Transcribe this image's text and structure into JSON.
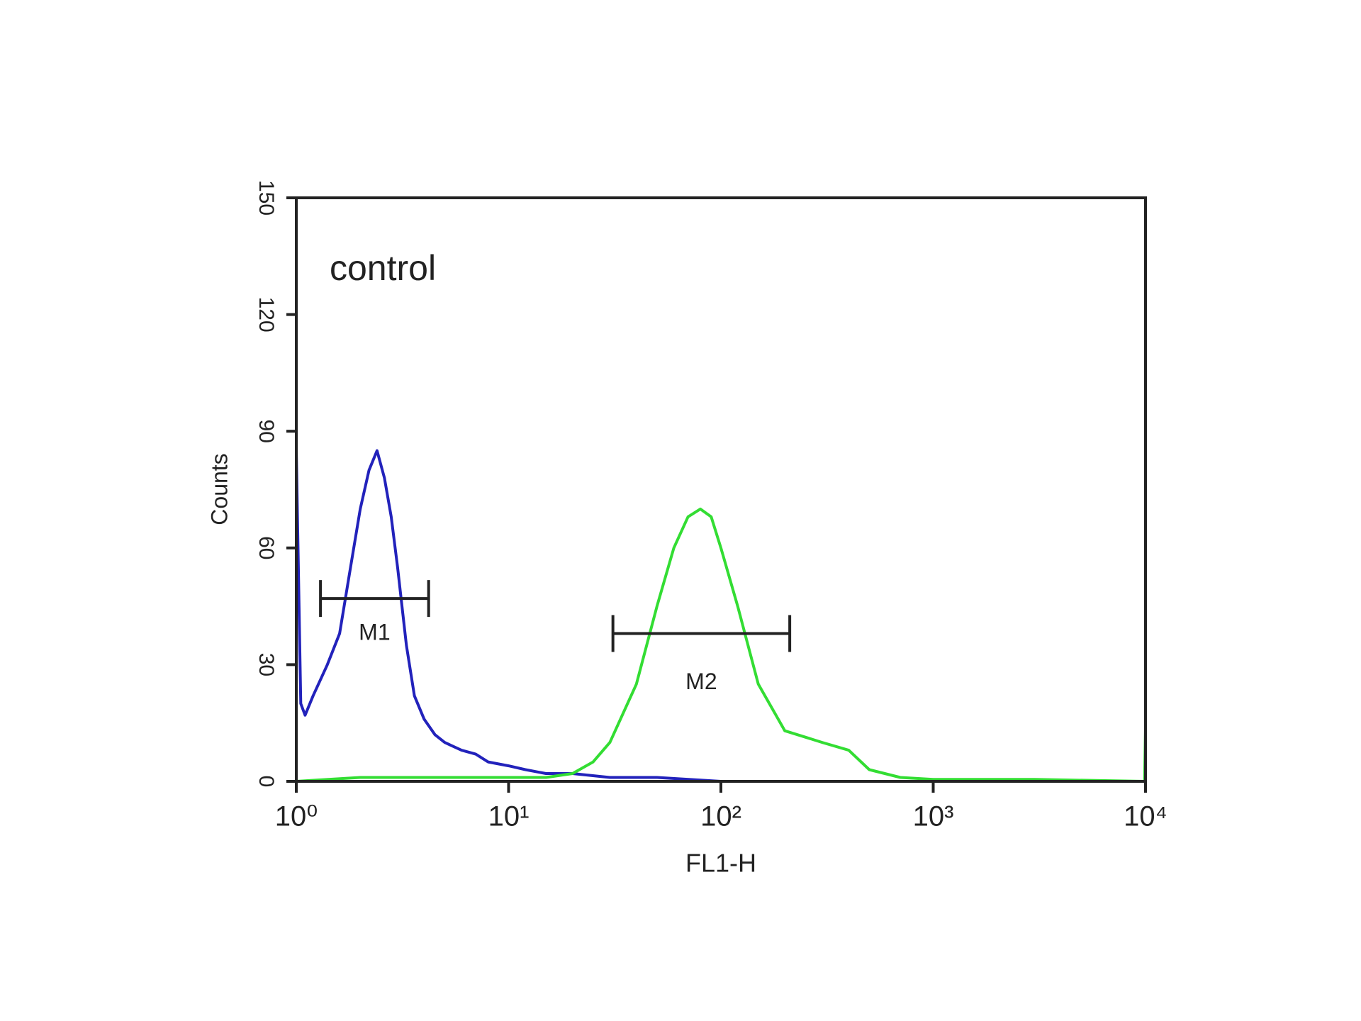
{
  "chart_data": {
    "type": "line",
    "annotation": "control",
    "xlabel": "FL1-H",
    "ylabel": "Counts",
    "xscale": "log",
    "xlim": [
      1,
      10000
    ],
    "ylim": [
      0,
      150
    ],
    "xticks": [
      {
        "value": 1,
        "label": "10⁰"
      },
      {
        "value": 10,
        "label": "10¹"
      },
      {
        "value": 100,
        "label": "10²"
      },
      {
        "value": 1000,
        "label": "10³"
      },
      {
        "value": 10000,
        "label": "10⁴"
      }
    ],
    "yticks": [
      0,
      30,
      60,
      90,
      120,
      150
    ],
    "series": [
      {
        "color": "#2222bb",
        "x": [
          1,
          1.05,
          1.1,
          1.2,
          1.4,
          1.6,
          1.8,
          2.0,
          2.2,
          2.4,
          2.6,
          2.8,
          3.0,
          3.3,
          3.6,
          4.0,
          4.5,
          5,
          6,
          7,
          8,
          10,
          12,
          15,
          20,
          30,
          50,
          100,
          200,
          1000,
          10000
        ],
        "values": [
          85,
          20,
          17,
          22,
          30,
          38,
          55,
          70,
          80,
          85,
          78,
          68,
          55,
          35,
          22,
          16,
          12,
          10,
          8,
          7,
          5,
          4,
          3,
          2,
          2,
          1,
          1,
          0,
          0,
          0,
          0
        ]
      },
      {
        "color": "#33dd33",
        "x": [
          1,
          2,
          5,
          10,
          15,
          20,
          25,
          30,
          40,
          50,
          60,
          70,
          80,
          90,
          100,
          120,
          150,
          200,
          300,
          400,
          500,
          700,
          1000,
          3000,
          9900,
          10000
        ],
        "values": [
          0,
          1,
          1,
          1,
          1,
          2,
          5,
          10,
          25,
          45,
          60,
          68,
          70,
          68,
          60,
          45,
          25,
          13,
          10,
          8,
          3,
          1,
          0.5,
          0.5,
          0,
          14
        ]
      }
    ],
    "markers": [
      {
        "label": "M1",
        "x": [
          1.3,
          4.2
        ],
        "y": 47
      },
      {
        "label": "M2",
        "x": [
          31,
          211
        ],
        "y": 38
      }
    ]
  }
}
